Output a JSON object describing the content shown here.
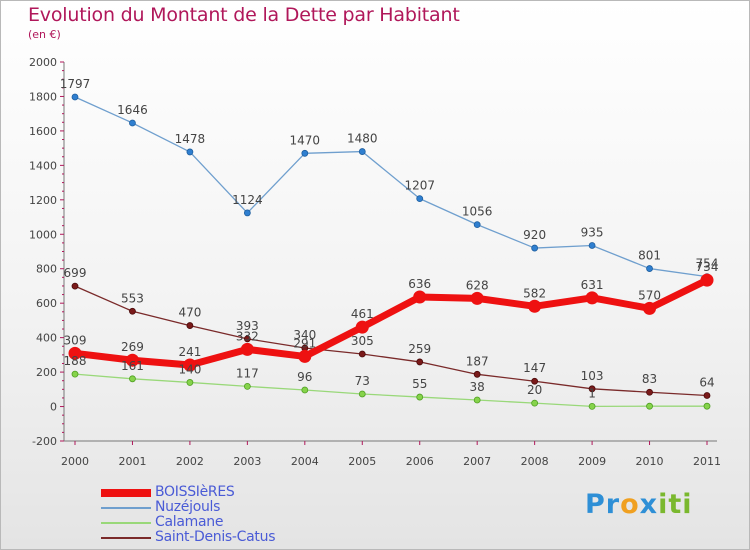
{
  "chart_data": {
    "type": "line",
    "title": "Evolution du Montant de la Dette par Habitant",
    "subtitle": "(en €)",
    "categories": [
      "2000",
      "2001",
      "2002",
      "2003",
      "2004",
      "2005",
      "2006",
      "2007",
      "2008",
      "2009",
      "2010",
      "2011"
    ],
    "ylim": [
      -200,
      2000
    ],
    "yticks": [
      -200,
      0,
      200,
      400,
      600,
      800,
      1000,
      1200,
      1400,
      1600,
      1800,
      2000
    ],
    "grid": false,
    "legend_position": "bottom-left",
    "series": [
      {
        "name": "BOISSIèRES",
        "color": "#ee1111",
        "values": [
          309,
          269,
          241,
          332,
          291,
          461,
          636,
          628,
          582,
          631,
          570,
          734
        ]
      },
      {
        "name": "Nuzéjouls",
        "color": "#6f9fce",
        "values": [
          1797,
          1646,
          1478,
          1124,
          1470,
          1480,
          1207,
          1056,
          920,
          935,
          801,
          754
        ]
      },
      {
        "name": "Calamane",
        "color": "#99d879",
        "values": [
          188,
          161,
          140,
          117,
          96,
          73,
          55,
          38,
          20,
          1,
          2,
          2
        ]
      },
      {
        "name": "Saint-Denis-Catus",
        "color": "#7a2a2a",
        "values": [
          699,
          553,
          470,
          393,
          340,
          305,
          259,
          187,
          147,
          103,
          83,
          64
        ]
      }
    ],
    "value_labels": {
      "BOISSIèRES": [
        "309",
        "269",
        "241",
        "332",
        "291",
        "461",
        "636",
        "628",
        "582",
        "631",
        "570",
        "734"
      ],
      "Nuzéjouls": [
        "1797",
        "1646",
        "1478",
        "1124",
        "1470",
        "1480",
        "1207",
        "1056",
        "920",
        "935",
        "801",
        "754"
      ],
      "Calamane": [
        "188",
        "161",
        "140",
        "117",
        "96",
        "73",
        "55",
        "38",
        "20",
        "1",
        "",
        ""
      ],
      "Saint-Denis-Catus": [
        "699",
        "553",
        "470",
        "393",
        "340",
        "305",
        "259",
        "187",
        "147",
        "103",
        "83",
        "64"
      ]
    }
  },
  "brand": {
    "p1": "Pr",
    "p2": "o",
    "p3": "x",
    "p4": "iti"
  }
}
